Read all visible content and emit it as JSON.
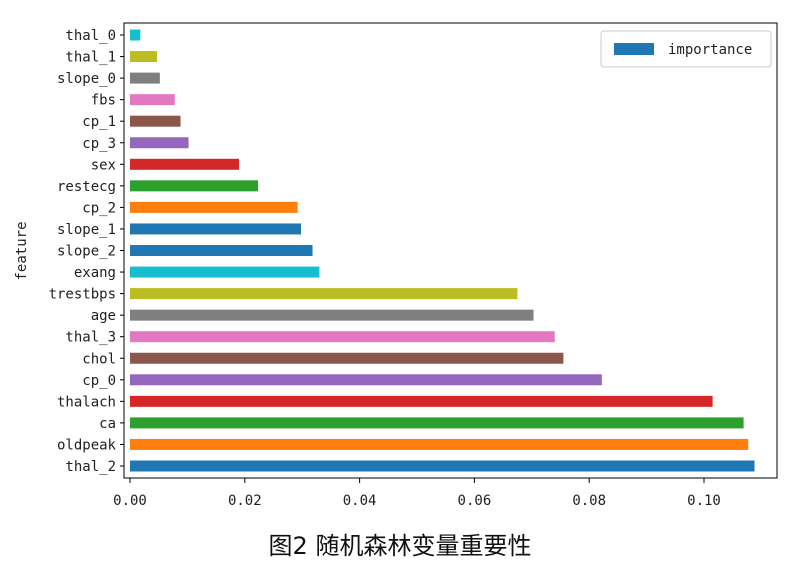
{
  "caption": "图2 随机森林变量重要性",
  "chart_data": {
    "type": "bar",
    "orientation": "horizontal",
    "ylabel": "feature",
    "xlim": [
      0,
      0.112
    ],
    "xticks": [
      "0.00",
      "0.02",
      "0.04",
      "0.06",
      "0.08",
      "0.10"
    ],
    "legend": {
      "label": "importance",
      "placement": "top-right",
      "color": "#1f77b4"
    },
    "categories": [
      "thal_2",
      "oldpeak",
      "ca",
      "thalach",
      "cp_0",
      "chol",
      "thal_3",
      "age",
      "trestbps",
      "exang",
      "slope_2",
      "slope_1",
      "cp_2",
      "restecg",
      "sex",
      "cp_3",
      "cp_1",
      "fbs",
      "slope_0",
      "thal_1",
      "thal_0"
    ],
    "values": [
      0.1088,
      0.1077,
      0.1069,
      0.1015,
      0.0822,
      0.0755,
      0.074,
      0.0703,
      0.0675,
      0.033,
      0.0318,
      0.0298,
      0.0292,
      0.0223,
      0.019,
      0.0102,
      0.0088,
      0.0078,
      0.0052,
      0.0047,
      0.0018
    ],
    "colors": [
      "#1f77b4",
      "#ff7f0e",
      "#2ca02c",
      "#d62728",
      "#9467bd",
      "#8c564b",
      "#e377c2",
      "#7f7f7f",
      "#bcbd22",
      "#17becf",
      "#1f77b4",
      "#1f77b4",
      "#ff7f0e",
      "#2ca02c",
      "#d62728",
      "#9467bd",
      "#8c564b",
      "#e377c2",
      "#7f7f7f",
      "#bcbd22",
      "#17becf"
    ]
  }
}
